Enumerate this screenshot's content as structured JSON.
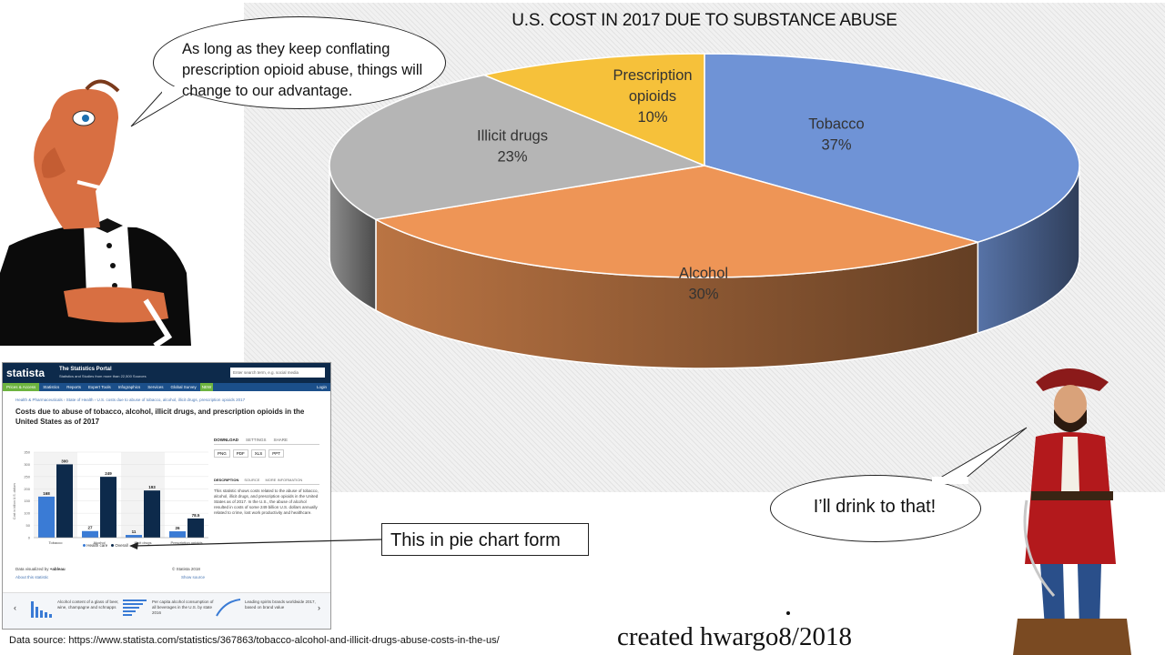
{
  "chart_data": [
    {
      "type": "pie",
      "title": "U.S. COST IN 2017 DUE TO SUBSTANCE ABUSE",
      "slices": [
        {
          "label": "Tobacco",
          "value": 37,
          "pct_label": "37%",
          "color": "#6f93d6"
        },
        {
          "label": "Alcohol",
          "value": 30,
          "pct_label": "30%",
          "color": "#ee9556"
        },
        {
          "label": "Illicit drugs",
          "value": 23,
          "pct_label": "23%",
          "color": "#b5b5b5"
        },
        {
          "label": "Prescription opioids",
          "value": 10,
          "pct_label": "10%",
          "color": "#f6c13a"
        }
      ]
    },
    {
      "type": "bar",
      "title": "Costs due to abuse of tobacco, alcohol, illicit drugs, and prescription opioids in the United States as of 2017",
      "categories": [
        "Tobacco",
        "Alcohol",
        "Illicit drugs",
        "Prescription opioids"
      ],
      "series": [
        {
          "name": "Health care",
          "values": [
            168,
            27,
            11,
            26
          ],
          "color": "#3a7bd5"
        },
        {
          "name": "Overall",
          "values": [
            300,
            249,
            193,
            78.5
          ],
          "color": "#0d2a4b"
        }
      ],
      "data_labels": [
        "168",
        "300",
        "27",
        "249",
        "11",
        "193",
        "26",
        "78.5"
      ],
      "ylim": [
        0,
        350
      ],
      "yticks": [
        "350",
        "300",
        "250",
        "200",
        "150",
        "100",
        "50",
        "0"
      ],
      "ylabel": "Cost in billion U.S. dollars",
      "grid": true,
      "legend": "bottom"
    }
  ],
  "speech": {
    "camel": "As long as they keep conflating prescription opioid abuse, things will change to our advantage.",
    "pirate": "I’ll drink to that!"
  },
  "caption": "This in pie chart form",
  "source": "Data source: https://www.statista.com/statistics/367863/tobacco-alcohol-and-illicit-drugs-abuse-costs-in-the-us/",
  "credit": "created hwargo8/2018",
  "statista": {
    "logo": "statista",
    "portal": "The Statistics Portal",
    "portal_sub": "Statistics and Studies from more than 22,500 Sources",
    "search_placeholder": "Enter search term, e.g. social media",
    "nav": [
      "Prices & Access",
      "Statistics",
      "Reports",
      "Expert Tools",
      "Infographics",
      "Services",
      "Global Survey",
      "NEW",
      "Login"
    ],
    "breadcrumb": "Health & Pharmaceuticals › State of Health › U.S. costs due to abuse of tobacco, alcohol, illicit drugs, prescription opioids 2017",
    "tabs": [
      "DOWNLOAD",
      "SETTINGS",
      "SHARE"
    ],
    "formats": [
      "PNG",
      "PDF",
      "XLS",
      "PPT"
    ],
    "desc_tabs": [
      "DESCRIPTION",
      "SOURCE",
      "MORE INFORMATION"
    ],
    "description": "This statistic shows costs related to the abuse of tobacco, alcohol, illicit drugs, and prescription opioids in the United States as of 2017. In the U.S., the abuse of alcohol resulted in costs of some 249 billion U.S. dollars annually related to crime, lost work productivity and healthcare.",
    "data_visualized": "Data visualized by",
    "tableau": "+ableau",
    "copyright": "© Statista 2018",
    "about": "About this statistic",
    "show_source": "Show source",
    "related": [
      "Alcohol content of a glass of beer, wine, champagne and schnapps",
      "Per capita alcohol consumption of all beverages in the U.S. by state 2016",
      "Leading spirits brands worldwide 2017, based on brand value"
    ]
  }
}
